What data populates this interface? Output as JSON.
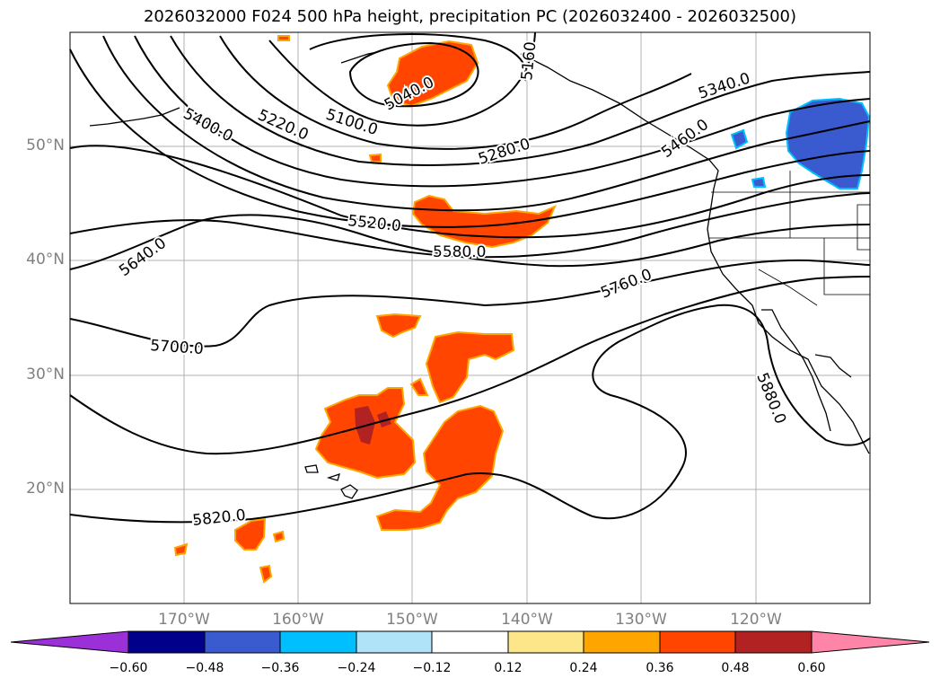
{
  "title": "2026032000 F024 500 hPa height, precipitation PC (2026032400 - 2026032500)",
  "lat_labels": [
    "50°N",
    "40°N",
    "30°N",
    "20°N"
  ],
  "lon_labels": [
    "170°W",
    "160°W",
    "150°W",
    "140°W",
    "130°W",
    "120°W"
  ],
  "contour_labels": [
    "5040.0",
    "5100.0",
    "5160",
    "5220.0",
    "5280.0",
    "5340.0",
    "5400.0",
    "5460.0",
    "5520.0",
    "5580.0",
    "5640.0",
    "5700.0",
    "5760.0",
    "5820.0",
    "5880.0"
  ],
  "colorbar": {
    "ticks": [
      "−0.60",
      "−0.48",
      "−0.36",
      "−0.24",
      "−0.12",
      "0.12",
      "0.24",
      "0.36",
      "0.48",
      "0.60"
    ],
    "colors": [
      "#9b30d9",
      "#00008b",
      "#3a5bd0",
      "#00bfff",
      "#b0e2f8",
      "#ffffff",
      "#fde68a",
      "#ffa500",
      "#ff4500",
      "#b22222",
      "#ff85a8"
    ]
  },
  "map_colors": {
    "precip_pos": "#ff4500",
    "precip_pos_high": "#b22222",
    "precip_edge": "#ffa500",
    "precip_neg": "#3a5bd0",
    "precip_neg_edge": "#00bfff"
  }
}
